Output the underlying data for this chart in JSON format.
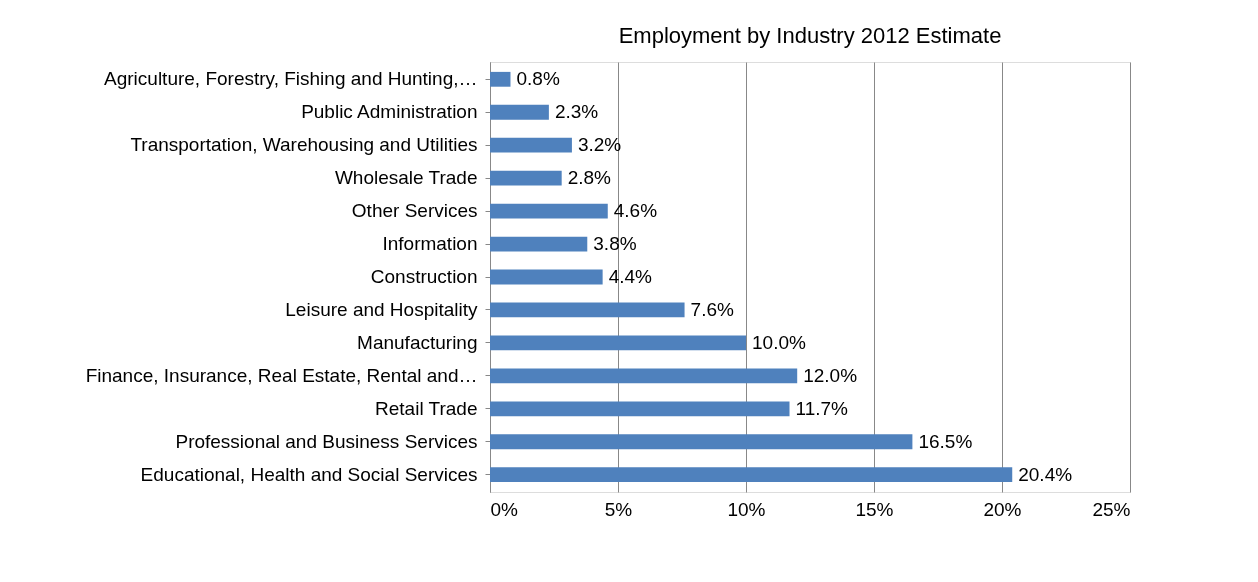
{
  "chart_data": {
    "type": "bar",
    "orientation": "horizontal",
    "title": "Employment by Industry 2012 Estimate",
    "categories": [
      "Agriculture, Forestry, Fishing and Hunting,…",
      "Public Administration",
      "Transportation, Warehousing and Utilities",
      "Wholesale Trade",
      "Other Services",
      "Information",
      "Construction",
      "Leisure and Hospitality",
      "Manufacturing",
      "Finance, Insurance, Real Estate, Rental and…",
      "Retail Trade",
      "Professional and Business Services",
      "Educational, Health and Social Services"
    ],
    "values": [
      0.8,
      2.3,
      3.2,
      2.8,
      4.6,
      3.8,
      4.4,
      7.6,
      10.0,
      12.0,
      11.7,
      16.5,
      20.4
    ],
    "value_labels": [
      "0.8%",
      "2.3%",
      "3.2%",
      "2.8%",
      "4.6%",
      "3.8%",
      "4.4%",
      "7.6%",
      "10.0%",
      "12.0%",
      "11.7%",
      "16.5%",
      "20.4%"
    ],
    "color": "#4f81bd",
    "xlim": [
      0,
      25
    ],
    "xticks": [
      {
        "value": 0,
        "label": "0%"
      },
      {
        "value": 5,
        "label": "5%"
      },
      {
        "value": 10,
        "label": "10%"
      },
      {
        "value": 15,
        "label": "15%"
      },
      {
        "value": 20,
        "label": "20%"
      },
      {
        "value": 25,
        "label": "25%"
      }
    ],
    "grid": "x"
  }
}
